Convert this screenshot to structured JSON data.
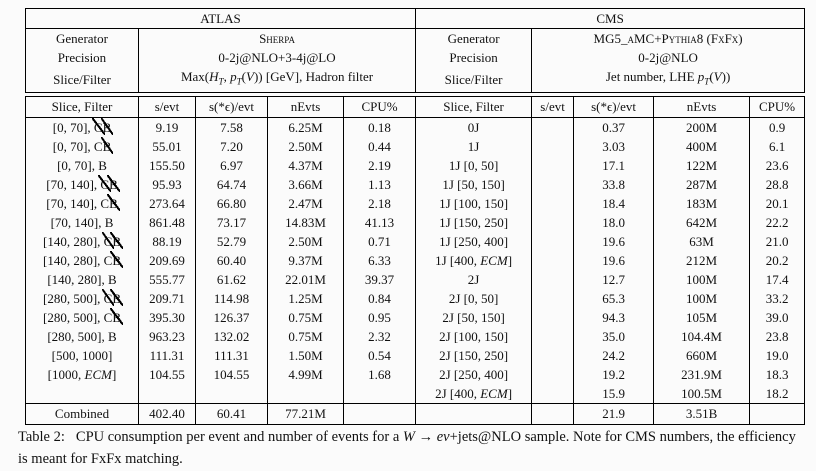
{
  "caption": {
    "label": "Table 2:",
    "text_html": "CPU consumption per event and number of events for a <i>W</i> → <i>eν</i>+jets@NLO sample. Note for CMS numbers, the efficiency is meant for FxFx matching."
  },
  "table": {
    "col_headers": [
      "Slice, Filter",
      "s/evt",
      "s(*ϵ)/evt",
      "nEvts",
      "CPU%"
    ],
    "sections": [
      {
        "id": "atlas",
        "title": "ATLAS",
        "meta": [
          {
            "label": "Generator",
            "value_html": "<span class=\"sc\">Sherpa</span>"
          },
          {
            "label": "Precision",
            "value_html": "0-2j@NLO+3-4j@LO"
          },
          {
            "label": "Slice/Filter",
            "value_html": "Max(<i>H<sub>T</sub></i>, <i>p<sub>T</sub></i>(<i>V</i>)) [GeV], Hadron filter"
          }
        ],
        "rows": [
          [
            "[0, 70], <span class=\"nx\">C</span><span class=\"nx\">B</span>",
            "9.19",
            "7.58",
            "6.25M",
            "0.18"
          ],
          [
            "[0, 70], C<span class=\"nx\">B</span>",
            "55.01",
            "7.20",
            "2.50M",
            "0.44"
          ],
          [
            "[0, 70], B",
            "155.50",
            "6.97",
            "4.37M",
            "2.19"
          ],
          [
            "[70, 140], <span class=\"nx\">C</span><span class=\"nx\">B</span>",
            "95.93",
            "64.74",
            "3.66M",
            "1.13"
          ],
          [
            "[70, 140], C<span class=\"nx\">B</span>",
            "273.64",
            "66.80",
            "2.47M",
            "2.18"
          ],
          [
            "[70, 140], B",
            "861.48",
            "73.17",
            "14.83M",
            "41.13"
          ],
          [
            "[140, 280], <span class=\"nx\">C</span><span class=\"nx\">B</span>",
            "88.19",
            "52.79",
            "2.50M",
            "0.71"
          ],
          [
            "[140, 280], C<span class=\"nx\">B</span>",
            "209.69",
            "60.40",
            "9.37M",
            "6.33"
          ],
          [
            "[140, 280], B",
            "555.77",
            "61.62",
            "22.01M",
            "39.37"
          ],
          [
            "[280, 500], <span class=\"nx\">C</span><span class=\"nx\">B</span>",
            "209.71",
            "114.98",
            "1.25M",
            "0.84"
          ],
          [
            "[280, 500], C<span class=\"nx\">B</span>",
            "395.30",
            "126.37",
            "0.75M",
            "0.95"
          ],
          [
            "[280, 500], B",
            "963.23",
            "132.02",
            "0.75M",
            "2.32"
          ],
          [
            "[500, 1000]",
            "111.31",
            "111.31",
            "1.50M",
            "0.54"
          ],
          [
            "[1000, <i>ECM</i>]",
            "104.55",
            "104.55",
            "4.99M",
            "1.68"
          ]
        ],
        "combined": [
          "Combined",
          "402.40",
          "60.41",
          "77.21M",
          ""
        ]
      },
      {
        "id": "cms",
        "title": "CMS",
        "meta": [
          {
            "label": "Generator",
            "value_html": "<span class=\"sc\">MG5_aMC+Pythia8 (FxFx)</span>"
          },
          {
            "label": "Precision",
            "value_html": "0-2j@NLO"
          },
          {
            "label": "Slice/Filter",
            "value_html": "Jet number, LHE <i>p<sub>T</sub></i>(<i>V</i>))"
          }
        ],
        "rows": [
          [
            "0J",
            "",
            "0.37",
            "200M",
            "0.9"
          ],
          [
            "1J",
            "",
            "3.03",
            "400M",
            "6.1"
          ],
          [
            "1J [0, 50]",
            "",
            "17.1",
            "122M",
            "23.6"
          ],
          [
            "1J [50, 150]",
            "",
            "33.8",
            "287M",
            "28.8"
          ],
          [
            "1J [100, 150]",
            "",
            "18.4",
            "183M",
            "20.1"
          ],
          [
            "1J [150, 250]",
            "",
            "18.0",
            "642M",
            "22.2"
          ],
          [
            "1J [250, 400]",
            "",
            "19.6",
            "63M",
            "21.0"
          ],
          [
            "1J [400, <i>ECM</i>]",
            "",
            "19.6",
            "212M",
            "20.2"
          ],
          [
            "2J",
            "",
            "12.7",
            "100M",
            "17.4"
          ],
          [
            "2J [0, 50]",
            "",
            "65.3",
            "100M",
            "33.2"
          ],
          [
            "2J [50, 150]",
            "",
            "94.3",
            "105M",
            "39.0"
          ],
          [
            "2J [100, 150]",
            "",
            "35.0",
            "104.4M",
            "23.8"
          ],
          [
            "2J [150, 250]",
            "",
            "24.2",
            "660M",
            "19.0"
          ],
          [
            "2J [250, 400]",
            "",
            "19.2",
            "231.9M",
            "18.3"
          ],
          [
            "2J [400, <i>ECM</i>]",
            "",
            "15.9",
            "100.5M",
            "18.2"
          ]
        ],
        "combined": [
          "",
          "",
          "21.9",
          "3.51B",
          ""
        ]
      }
    ]
  }
}
